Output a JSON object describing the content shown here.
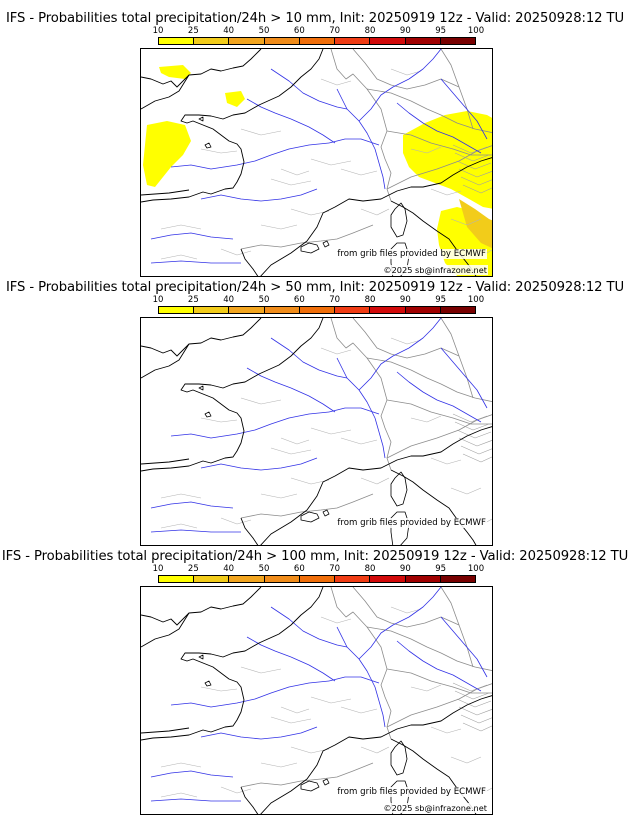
{
  "panels": [
    {
      "title": "IFS - Probabilities total precipitation/24h > 10 mm, Init: 20250919 12z - Valid: 20250928:12 TU",
      "threshold_mm": 10,
      "precip_areas": [
        "channel",
        "bretagne-islands",
        "biscay-coast",
        "alps-east",
        "corsica-east"
      ]
    },
    {
      "title": "IFS - Probabilities total precipitation/24h > 50 mm, Init: 20250919 12z - Valid: 20250928:12 TU",
      "threshold_mm": 50,
      "precip_areas": []
    },
    {
      "title": "IFS - Probabilities total precipitation/24h > 100 mm, Init: 20250919 12z - Valid: 20250928:12 TU",
      "threshold_mm": 100,
      "precip_areas": []
    }
  ],
  "colorbar": {
    "ticks": [
      "10",
      "25",
      "40",
      "50",
      "60",
      "70",
      "80",
      "90",
      "95",
      "100"
    ],
    "colors": [
      "#ffff00",
      "#f2cc1a",
      "#f2a51f",
      "#f08c1a",
      "#f06e0a",
      "#f03c14",
      "#d20a0a",
      "#a00000",
      "#780000"
    ]
  },
  "legend_colors": {
    "coast": "#000000",
    "borders": "#8c8c8c",
    "rivers": "#3232e6",
    "precip_10_25": "#ffff00",
    "precip_25_40": "#f2cc1a"
  },
  "credit": "from grib files provided by ECMWF",
  "copyright": "©2025 sb@infrazone.net"
}
